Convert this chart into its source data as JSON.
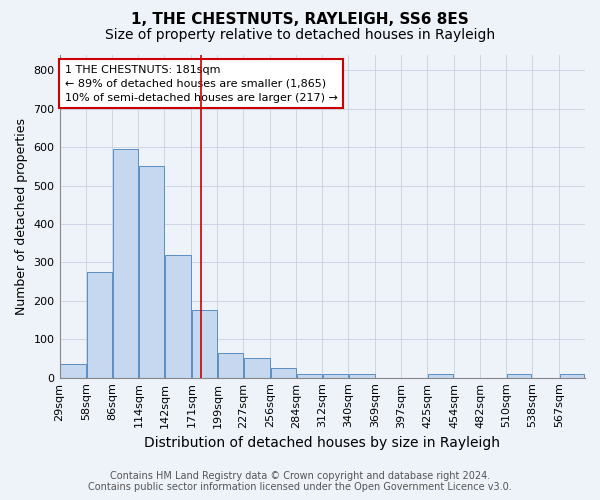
{
  "title": "1, THE CHESTNUTS, RAYLEIGH, SS6 8ES",
  "subtitle": "Size of property relative to detached houses in Rayleigh",
  "xlabel": "Distribution of detached houses by size in Rayleigh",
  "ylabel": "Number of detached properties",
  "footer_line1": "Contains HM Land Registry data © Crown copyright and database right 2024.",
  "footer_line2": "Contains public sector information licensed under the Open Government Licence v3.0.",
  "bins": [
    29,
    58,
    86,
    114,
    142,
    171,
    199,
    227,
    256,
    284,
    312,
    340,
    369,
    397,
    425,
    454,
    482,
    510,
    538,
    567,
    595
  ],
  "values": [
    35,
    275,
    595,
    550,
    320,
    175,
    65,
    50,
    25,
    10,
    10,
    10,
    0,
    0,
    10,
    0,
    0,
    10,
    0,
    10
  ],
  "bar_color": "#c5d8f0",
  "bar_edge_color": "#5a8fc2",
  "vline_x": 181,
  "vline_color": "#cc0000",
  "annotation_text": "1 THE CHESTNUTS: 181sqm\n← 89% of detached houses are smaller (1,865)\n10% of semi-detached houses are larger (217) →",
  "annotation_box_facecolor": "#ffffff",
  "annotation_box_edgecolor": "#cc0000",
  "ylim": [
    0,
    840
  ],
  "yticks": [
    0,
    100,
    200,
    300,
    400,
    500,
    600,
    700,
    800
  ],
  "bg_color": "#eef2f9",
  "plot_bg_color": "#eef2f9",
  "title_fontsize": 11,
  "subtitle_fontsize": 10,
  "xlabel_fontsize": 10,
  "ylabel_fontsize": 9,
  "tick_fontsize": 8,
  "annotation_fontsize": 8,
  "footer_fontsize": 7
}
